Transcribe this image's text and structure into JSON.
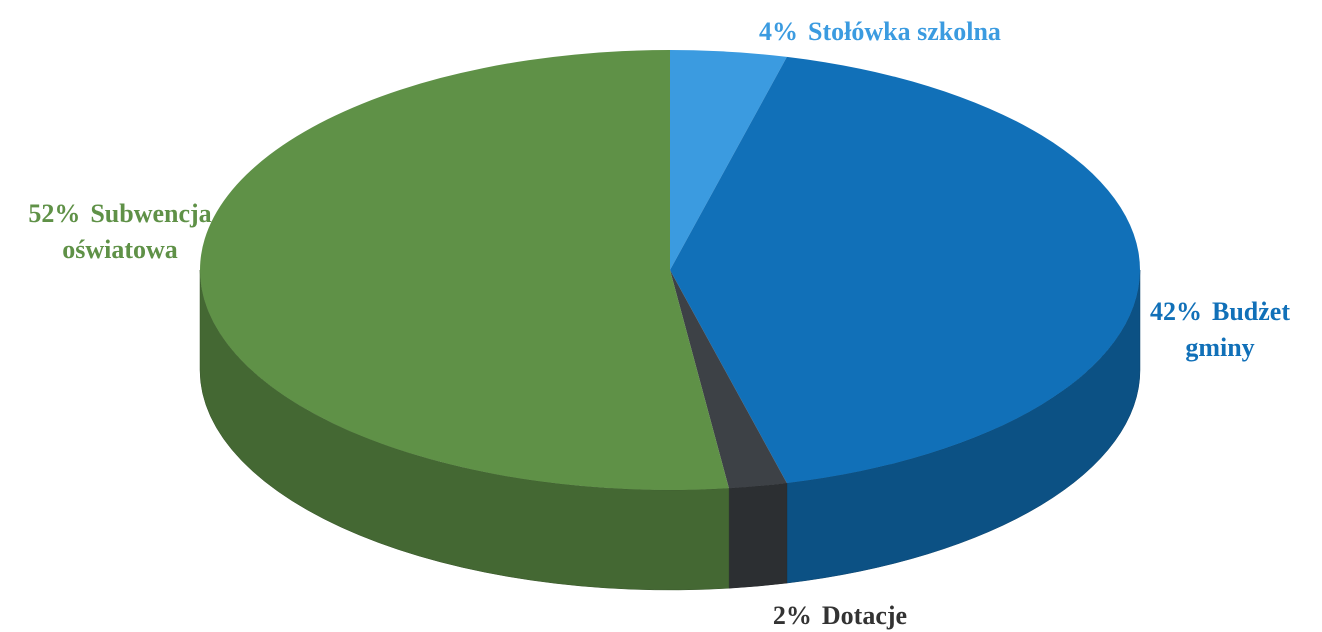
{
  "chart_data": {
    "type": "pie3d",
    "categories": [
      "Stołówka szkolna",
      "Budżet gminy",
      "Dotacje",
      "Subwencja oświatowa"
    ],
    "values": [
      4,
      42,
      2,
      52
    ],
    "value_labels": [
      "4%",
      "42%",
      "2%",
      "52%"
    ],
    "colors": [
      "#3b9be0",
      "#1170b8",
      "#3d4146",
      "#5f9147"
    ]
  }
}
